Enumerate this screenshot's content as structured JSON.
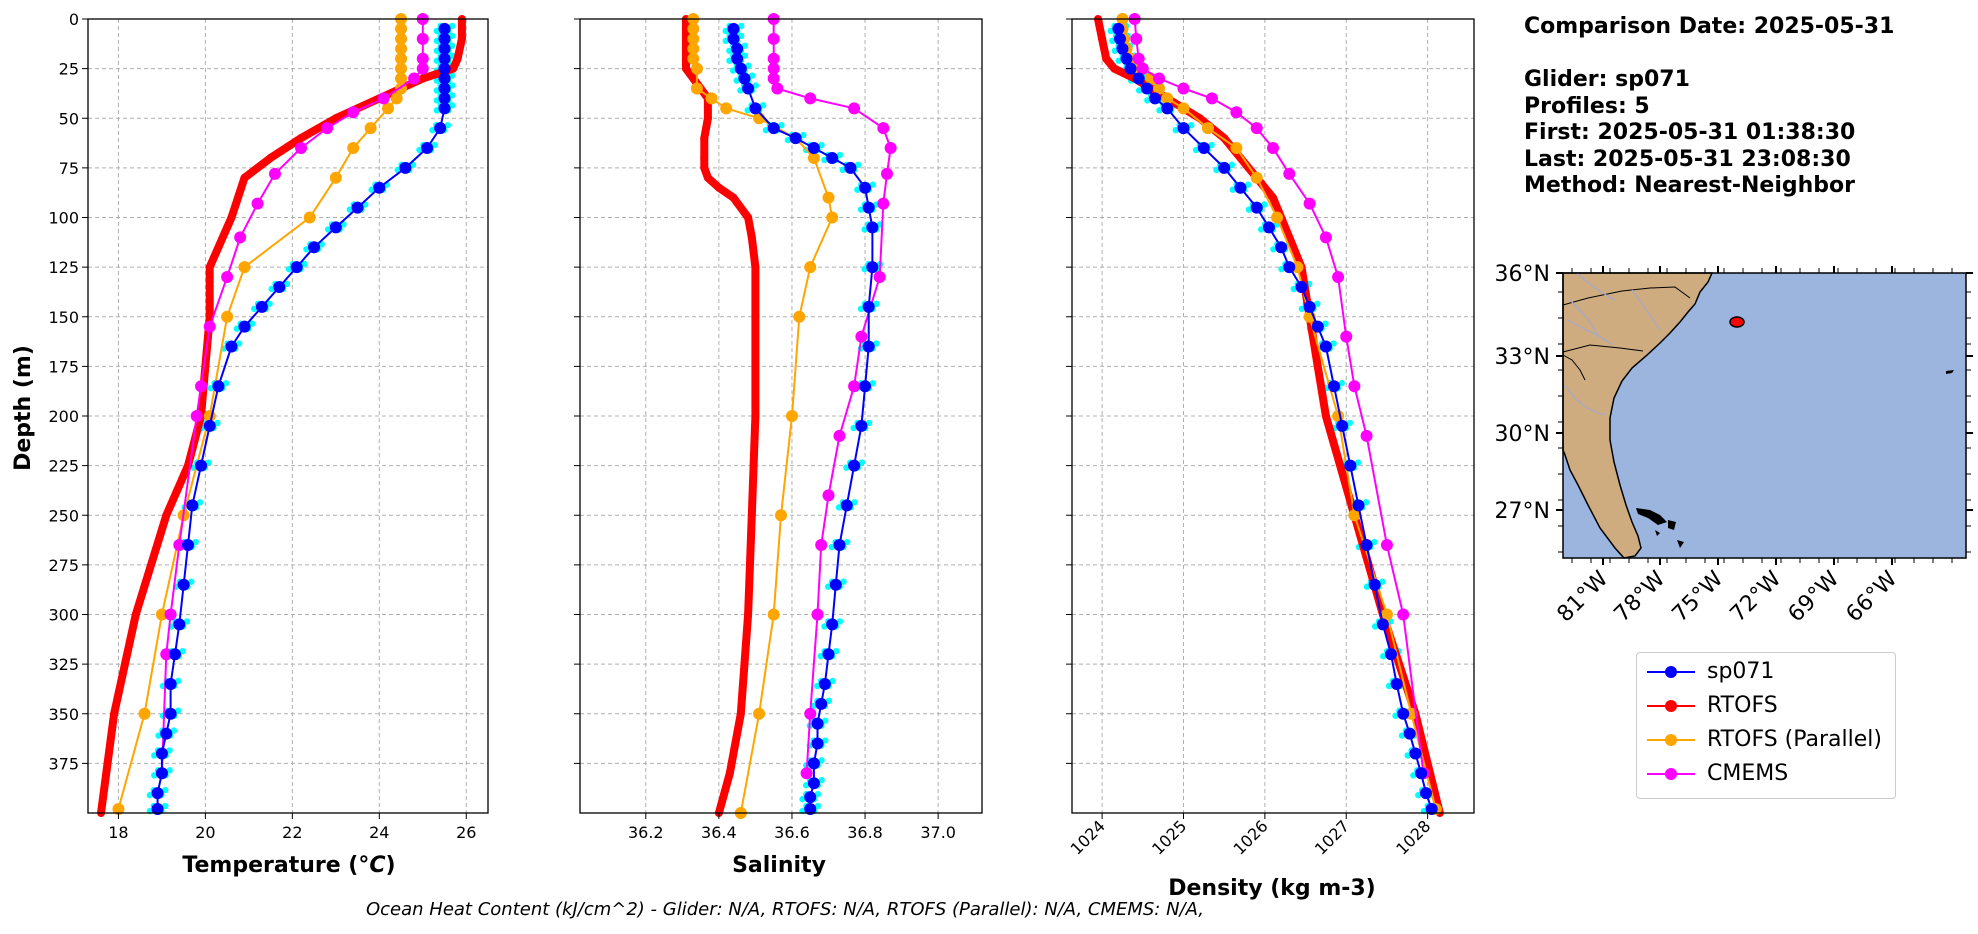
{
  "info": {
    "comparison_date": "Comparison Date: 2025-05-31",
    "glider": "Glider: sp071",
    "profiles": "Profiles: 5",
    "first": "First: 2025-05-31 01:38:30",
    "last": "Last: 2025-05-31 23:08:30",
    "method": "Method: Nearest-Neighbor"
  },
  "footer": "Ocean Heat Content (kJ/cm^2) - Glider: N/A,  RTOFS: N/A,  RTOFS (Parallel): N/A,  CMEMS: N/A,",
  "colors": {
    "sp071": "#0000ff",
    "rtofs": "#ff0000",
    "parallel": "#ffa500",
    "cmems": "#ff00ff",
    "raw": "#00ffff",
    "ocean": "#9bb5df",
    "land": "#cfac80",
    "river": "#a8a8c8"
  },
  "legend": [
    {
      "name": "sp071",
      "color": "#0000ff"
    },
    {
      "name": "RTOFS",
      "color": "#ff0000"
    },
    {
      "name": "RTOFS (Parallel)",
      "color": "#ffa500"
    },
    {
      "name": "CMEMS",
      "color": "#ff00ff"
    }
  ],
  "chart_data": [
    {
      "type": "line",
      "xlabel": "Temperature (°C)",
      "ylabel": "Depth (m)",
      "xlim": [
        17.3,
        26.5
      ],
      "ylim": [
        400,
        0
      ],
      "xticks": [
        18,
        20,
        22,
        24,
        26
      ],
      "yticks": [
        0,
        25,
        50,
        75,
        100,
        125,
        150,
        175,
        200,
        225,
        250,
        275,
        300,
        325,
        350,
        375
      ],
      "grid": true,
      "series": [
        {
          "name": "sp071",
          "x": [
            25.5,
            25.5,
            25.5,
            25.5,
            25.5,
            25.5,
            25.5,
            25.5,
            25.5,
            25.4,
            25.1,
            24.6,
            24.0,
            23.5,
            23.0,
            22.5,
            22.1,
            21.7,
            21.3,
            20.9,
            20.6,
            20.3,
            20.1,
            19.9,
            19.7,
            19.6,
            19.5,
            19.4,
            19.3,
            19.2,
            19.2,
            19.1,
            19.0,
            19.0,
            18.9,
            18.9
          ],
          "y": [
            5,
            10,
            15,
            20,
            25,
            30,
            35,
            40,
            45,
            55,
            65,
            75,
            85,
            95,
            105,
            115,
            125,
            135,
            145,
            155,
            165,
            185,
            205,
            225,
            245,
            265,
            285,
            305,
            320,
            335,
            350,
            360,
            370,
            380,
            390,
            398
          ]
        },
        {
          "name": "RTOFS",
          "x": [
            25.9,
            25.9,
            25.8,
            25.7,
            25.0,
            24.0,
            23.0,
            22.2,
            21.5,
            20.9,
            20.6,
            20.1,
            20.1,
            19.9,
            19.6,
            19.1,
            18.4,
            17.9,
            17.6
          ],
          "y": [
            0,
            10,
            20,
            25,
            30,
            40,
            50,
            60,
            70,
            80,
            100,
            125,
            150,
            200,
            225,
            250,
            300,
            350,
            400
          ]
        },
        {
          "name": "RTOFS (Parallel)",
          "x": [
            24.5,
            24.5,
            24.5,
            24.5,
            24.5,
            24.5,
            24.5,
            24.5,
            24.4,
            24.2,
            23.8,
            23.4,
            23.0,
            22.4,
            20.9,
            20.5,
            20.1,
            19.5,
            19.0,
            18.6,
            18.0
          ],
          "y": [
            0,
            5,
            10,
            15,
            20,
            25,
            30,
            35,
            40,
            45,
            55,
            65,
            80,
            100,
            125,
            150,
            200,
            250,
            300,
            350,
            398
          ]
        },
        {
          "name": "CMEMS",
          "x": [
            25.0,
            25.0,
            25.0,
            25.0,
            24.8,
            24.1,
            23.4,
            22.8,
            22.2,
            21.6,
            21.2,
            20.8,
            20.5,
            20.1,
            19.9,
            19.8,
            19.4,
            19.2,
            19.1,
            19.0
          ],
          "y": [
            0,
            10,
            20,
            25,
            30,
            40,
            47,
            55,
            65,
            78,
            93,
            110,
            130,
            155,
            185,
            200,
            265,
            300,
            320,
            380
          ]
        }
      ]
    },
    {
      "type": "line",
      "xlabel": "Salinity",
      "xlim": [
        36.02,
        37.12
      ],
      "ylim": [
        400,
        0
      ],
      "xticks": [
        36.2,
        36.4,
        36.6,
        36.8,
        37.0
      ],
      "grid": true,
      "series": [
        {
          "name": "sp071",
          "x": [
            36.44,
            36.44,
            36.45,
            36.45,
            36.46,
            36.47,
            36.48,
            36.5,
            36.55,
            36.61,
            36.66,
            36.71,
            36.76,
            36.8,
            36.81,
            36.82,
            36.82,
            36.81,
            36.81,
            36.8,
            36.79,
            36.77,
            36.75,
            36.73,
            36.72,
            36.71,
            36.7,
            36.69,
            36.68,
            36.67,
            36.67,
            36.66,
            36.66,
            36.65,
            36.65
          ],
          "y": [
            5,
            10,
            15,
            20,
            25,
            30,
            35,
            45,
            55,
            60,
            65,
            70,
            75,
            85,
            95,
            105,
            125,
            145,
            165,
            185,
            205,
            225,
            245,
            265,
            285,
            305,
            320,
            335,
            345,
            355,
            365,
            375,
            385,
            392,
            398
          ]
        },
        {
          "name": "RTOFS",
          "x": [
            36.31,
            36.31,
            36.31,
            36.31,
            36.33,
            36.37,
            36.37,
            36.36,
            36.36,
            36.36,
            36.37,
            36.4,
            36.44,
            36.48,
            36.49,
            36.5,
            36.5,
            36.5,
            36.49,
            36.48,
            36.46,
            36.43,
            36.4
          ],
          "y": [
            0,
            10,
            20,
            25,
            30,
            40,
            50,
            60,
            70,
            75,
            80,
            85,
            90,
            100,
            110,
            125,
            150,
            200,
            250,
            300,
            350,
            380,
            400
          ]
        },
        {
          "name": "RTOFS (Parallel)",
          "x": [
            36.33,
            36.33,
            36.33,
            36.33,
            36.33,
            36.34,
            36.34,
            36.38,
            36.42,
            36.51,
            36.61,
            36.66,
            36.7,
            36.71,
            36.65,
            36.62,
            36.6,
            36.57,
            36.55,
            36.51,
            36.46
          ],
          "y": [
            0,
            5,
            10,
            15,
            20,
            25,
            35,
            40,
            45,
            50,
            60,
            70,
            90,
            100,
            125,
            150,
            200,
            250,
            300,
            350,
            400
          ]
        },
        {
          "name": "CMEMS",
          "x": [
            36.55,
            36.55,
            36.55,
            36.55,
            36.55,
            36.56,
            36.65,
            36.77,
            36.85,
            36.87,
            36.86,
            36.85,
            36.84,
            36.79,
            36.77,
            36.73,
            36.7,
            36.68,
            36.67,
            36.65,
            36.64
          ],
          "y": [
            0,
            10,
            20,
            25,
            30,
            35,
            40,
            45,
            55,
            65,
            78,
            93,
            130,
            160,
            185,
            210,
            240,
            265,
            300,
            350,
            380
          ]
        }
      ]
    },
    {
      "type": "line",
      "xlabel": "Density (kg m-3)",
      "xlim": [
        1023.63,
        1028.57
      ],
      "ylim": [
        400,
        0
      ],
      "xticks": [
        1024,
        1025,
        1026,
        1027,
        1028
      ],
      "grid": true,
      "series": [
        {
          "name": "sp071",
          "x": [
            1024.2,
            1024.22,
            1024.25,
            1024.3,
            1024.35,
            1024.45,
            1024.55,
            1024.65,
            1024.8,
            1025.0,
            1025.25,
            1025.5,
            1025.7,
            1025.9,
            1026.05,
            1026.2,
            1026.3,
            1026.45,
            1026.55,
            1026.65,
            1026.75,
            1026.85,
            1026.95,
            1027.05,
            1027.15,
            1027.25,
            1027.35,
            1027.45,
            1027.55,
            1027.62,
            1027.7,
            1027.78,
            1027.85,
            1027.92,
            1027.98,
            1028.05
          ],
          "y": [
            5,
            10,
            15,
            20,
            25,
            30,
            35,
            40,
            45,
            55,
            65,
            75,
            85,
            95,
            105,
            115,
            125,
            135,
            145,
            155,
            165,
            185,
            205,
            225,
            245,
            265,
            285,
            305,
            320,
            335,
            350,
            360,
            370,
            380,
            390,
            398
          ]
        },
        {
          "name": "RTOFS",
          "x": [
            1023.95,
            1024.0,
            1024.05,
            1024.15,
            1024.4,
            1024.8,
            1025.2,
            1025.5,
            1025.8,
            1026.1,
            1026.3,
            1026.45,
            1026.75,
            1027.1,
            1027.45,
            1027.85,
            1028.15
          ],
          "y": [
            0,
            10,
            20,
            25,
            30,
            40,
            50,
            60,
            75,
            90,
            110,
            125,
            200,
            250,
            300,
            350,
            400
          ]
        },
        {
          "name": "RTOFS (Parallel)",
          "x": [
            1024.25,
            1024.25,
            1024.27,
            1024.3,
            1024.35,
            1024.45,
            1024.6,
            1024.7,
            1024.8,
            1025.0,
            1025.3,
            1025.65,
            1025.9,
            1026.15,
            1026.4,
            1026.55,
            1026.9,
            1027.1,
            1027.5,
            1027.8,
            1028.1
          ],
          "y": [
            0,
            5,
            10,
            15,
            20,
            25,
            30,
            35,
            40,
            45,
            55,
            65,
            80,
            100,
            125,
            150,
            200,
            250,
            300,
            350,
            398
          ]
        },
        {
          "name": "CMEMS",
          "x": [
            1024.4,
            1024.42,
            1024.45,
            1024.5,
            1024.7,
            1025.0,
            1025.35,
            1025.65,
            1025.9,
            1026.1,
            1026.3,
            1026.55,
            1026.75,
            1026.9,
            1027.0,
            1027.1,
            1027.25,
            1027.5,
            1027.7,
            1027.95
          ],
          "y": [
            0,
            10,
            20,
            25,
            30,
            35,
            40,
            47,
            55,
            65,
            78,
            93,
            110,
            130,
            160,
            185,
            210,
            265,
            300,
            380
          ]
        }
      ]
    }
  ],
  "map": {
    "lat_labels": [
      "36°N",
      "33°N",
      "30°N",
      "27°N"
    ],
    "lon_labels": [
      "81°W",
      "78°W",
      "75°W",
      "72°W",
      "69°W",
      "66°W"
    ],
    "glider_position": {
      "lon": -75.3,
      "lat": 34.2
    }
  }
}
